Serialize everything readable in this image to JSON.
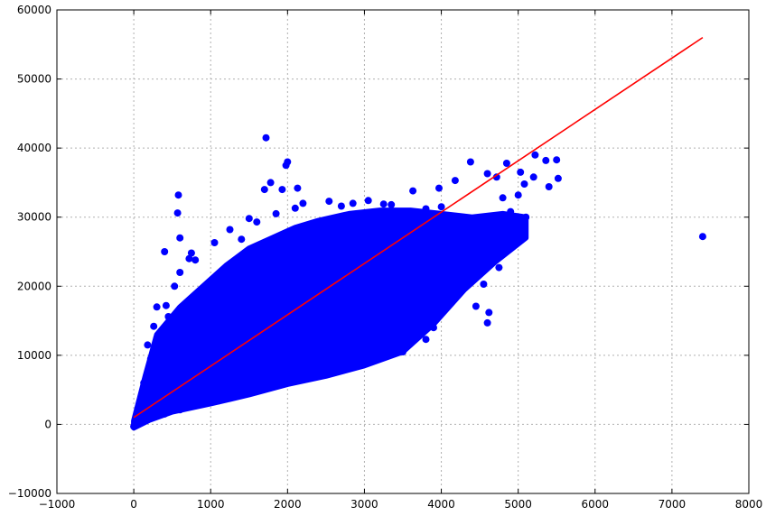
{
  "chart_data": {
    "type": "scatter",
    "title": "",
    "xlabel": "",
    "ylabel": "",
    "xlim": [
      -1000,
      8000
    ],
    "ylim": [
      -10000,
      60000
    ],
    "grid": true,
    "x_ticks": [
      -1000,
      0,
      1000,
      2000,
      3000,
      4000,
      5000,
      6000,
      7000,
      8000
    ],
    "y_ticks": [
      -10000,
      0,
      10000,
      20000,
      30000,
      40000,
      50000,
      60000
    ],
    "x_tick_labels": [
      "−1000",
      "0",
      "1000",
      "2000",
      "3000",
      "4000",
      "5000",
      "6000",
      "7000",
      "8000"
    ],
    "y_tick_labels": [
      "−10000",
      "0",
      "10000",
      "20000",
      "30000",
      "40000",
      "50000",
      "60000"
    ],
    "colors": {
      "points": "#0000ff",
      "line": "#ff0000",
      "grid": "#b0b0b0",
      "axes": "#000000"
    },
    "fit_line": {
      "x": [
        0,
        7400
      ],
      "y": [
        1000,
        56000
      ]
    },
    "dense_region": {
      "upper_edge": [
        [
          0,
          500
        ],
        [
          150,
          7000
        ],
        [
          300,
          13000
        ],
        [
          600,
          17000
        ],
        [
          900,
          20000
        ],
        [
          1200,
          23000
        ],
        [
          1500,
          25500
        ],
        [
          1800,
          27000
        ],
        [
          2100,
          28500
        ],
        [
          2400,
          29500
        ],
        [
          2800,
          30500
        ],
        [
          3200,
          31000
        ],
        [
          3600,
          31000
        ],
        [
          4000,
          30500
        ],
        [
          4400,
          30000
        ],
        [
          4800,
          30500
        ],
        [
          5100,
          30000
        ]
      ],
      "lower_edge": [
        [
          5100,
          27000
        ],
        [
          4700,
          23500
        ],
        [
          4300,
          19500
        ],
        [
          3900,
          14500
        ],
        [
          3500,
          10500
        ],
        [
          3000,
          8500
        ],
        [
          2500,
          7000
        ],
        [
          2000,
          5800
        ],
        [
          1500,
          4300
        ],
        [
          1000,
          3000
        ],
        [
          500,
          1800
        ],
        [
          200,
          600
        ],
        [
          0,
          -500
        ]
      ]
    },
    "points": [
      [
        1720,
        41500
      ],
      [
        2000,
        38000
      ],
      [
        1980,
        37500
      ],
      [
        4380,
        38000
      ],
      [
        1780,
        35000
      ],
      [
        1930,
        34000
      ],
      [
        2130,
        34200
      ],
      [
        1700,
        34000
      ],
      [
        580,
        33200
      ],
      [
        570,
        30600
      ],
      [
        600,
        27000
      ],
      [
        400,
        25000
      ],
      [
        750,
        24800
      ],
      [
        720,
        24000
      ],
      [
        2200,
        32000
      ],
      [
        2540,
        32300
      ],
      [
        2850,
        32000
      ],
      [
        3050,
        32400
      ],
      [
        3350,
        31800
      ],
      [
        3630,
        33800
      ],
      [
        3970,
        34200
      ],
      [
        4180,
        35300
      ],
      [
        4600,
        36300
      ],
      [
        4720,
        35800
      ],
      [
        4850,
        37800
      ],
      [
        5030,
        36500
      ],
      [
        5080,
        34800
      ],
      [
        5200,
        35800
      ],
      [
        5360,
        38200
      ],
      [
        5220,
        39000
      ],
      [
        5500,
        38300
      ],
      [
        5520,
        35600
      ],
      [
        5400,
        34400
      ],
      [
        5100,
        30000
      ],
      [
        4950,
        28500
      ],
      [
        4700,
        26000
      ],
      [
        4900,
        30800
      ],
      [
        4620,
        16200
      ],
      [
        4450,
        17100
      ],
      [
        4200,
        18800
      ],
      [
        4090,
        22100
      ],
      [
        3900,
        14000
      ],
      [
        4300,
        21500
      ],
      [
        4600,
        14700
      ],
      [
        4550,
        20300
      ],
      [
        4300,
        23800
      ],
      [
        4750,
        22700
      ],
      [
        4800,
        24600
      ],
      [
        3500,
        10500
      ],
      [
        3800,
        12300
      ],
      [
        3650,
        13500
      ],
      [
        3250,
        9800
      ],
      [
        2950,
        9200
      ],
      [
        2800,
        8800
      ],
      [
        2600,
        7900
      ],
      [
        2350,
        7300
      ],
      [
        2050,
        6300
      ],
      [
        1800,
        5600
      ],
      [
        1600,
        4900
      ],
      [
        1350,
        4100
      ],
      [
        1100,
        3400
      ],
      [
        850,
        2800
      ],
      [
        600,
        2100
      ],
      [
        400,
        1500
      ],
      [
        200,
        800
      ],
      [
        0,
        -300
      ],
      [
        20,
        100
      ],
      [
        60,
        500
      ],
      [
        150,
        3000
      ],
      [
        130,
        6000
      ],
      [
        220,
        9500
      ],
      [
        180,
        11500
      ],
      [
        300,
        12500
      ],
      [
        260,
        14200
      ],
      [
        450,
        15600
      ],
      [
        300,
        17000
      ],
      [
        420,
        17200
      ],
      [
        530,
        20000
      ],
      [
        600,
        22000
      ],
      [
        800,
        23800
      ],
      [
        1050,
        26300
      ],
      [
        1250,
        28200
      ],
      [
        1400,
        26800
      ],
      [
        1500,
        29800
      ],
      [
        1600,
        29300
      ],
      [
        1850,
        30500
      ],
      [
        2100,
        31300
      ],
      [
        2700,
        31600
      ],
      [
        3250,
        31900
      ],
      [
        3800,
        31200
      ],
      [
        4000,
        31500
      ],
      [
        4100,
        30200
      ],
      [
        4800,
        32800
      ],
      [
        5000,
        33200
      ],
      [
        7400,
        27200
      ]
    ]
  }
}
